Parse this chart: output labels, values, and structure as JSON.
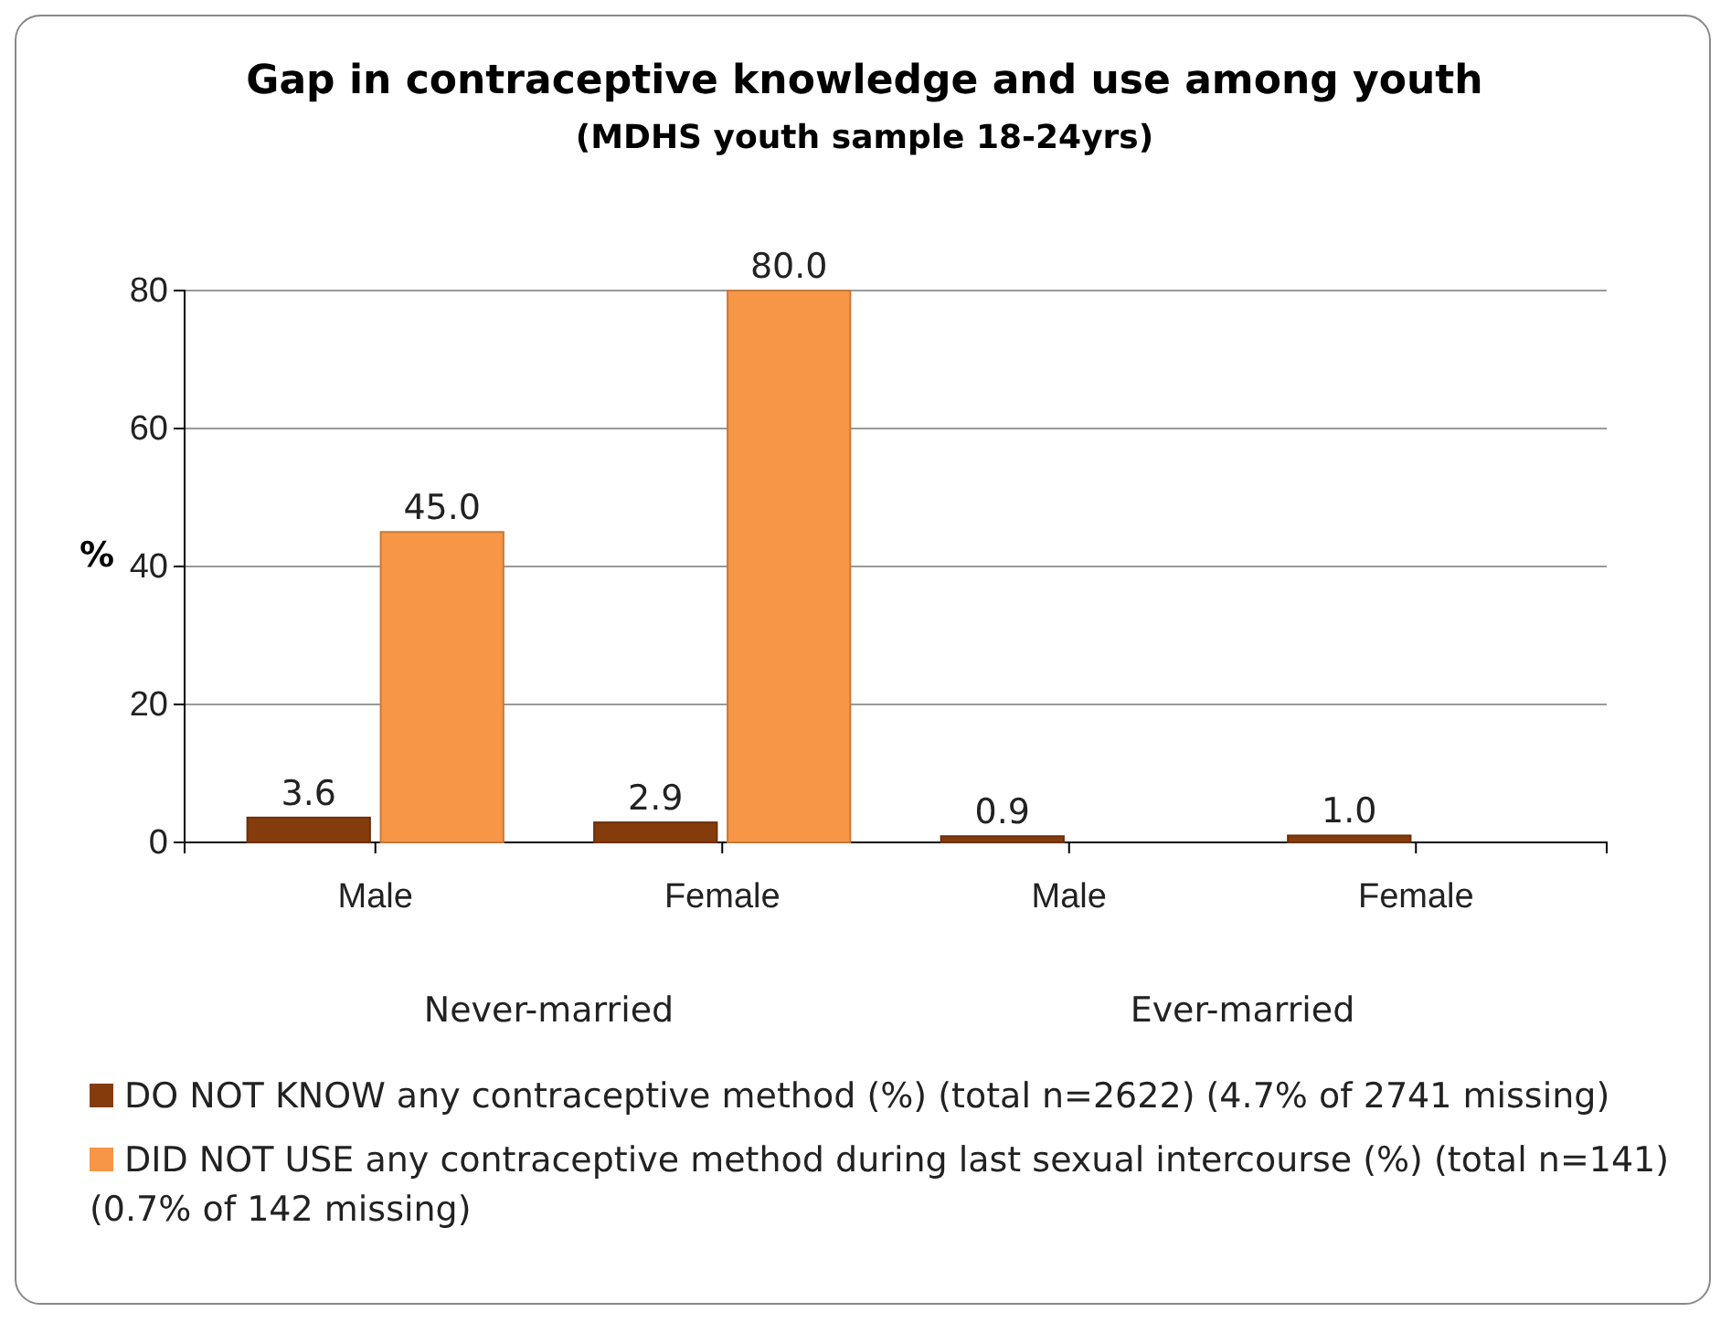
{
  "chart_data": {
    "type": "bar",
    "title": "Gap in contraceptive knowledge and use among youth",
    "subtitle": "(MDHS youth sample 18-24yrs)",
    "ylabel": "%",
    "categories": [
      "Male",
      "Female",
      "Male",
      "Female"
    ],
    "series": [
      {
        "name": "DO NOT KNOW any contraceptive method (%)  (total n=2622) (4.7% of 2741 missing)",
        "color": "#843c0c",
        "values": [
          3.6,
          2.9,
          0.9,
          1.0
        ]
      },
      {
        "name": "DID NOT USE any contraceptive method during last sexual intercourse (%) (total n=141) (0.7% of 142 missing)",
        "color": "#f79646",
        "values": [
          45.0,
          80.0,
          null,
          null
        ]
      }
    ],
    "value_labels": [
      [
        "3.6",
        "2.9",
        "0.9",
        "1.0"
      ],
      [
        "45.0",
        "80.0",
        null,
        null
      ]
    ],
    "annotations": [
      "Never-married",
      "Ever-married"
    ],
    "ylim": [
      0,
      80
    ],
    "yticks": [
      0,
      20,
      40,
      60,
      80
    ],
    "grid": "y",
    "legend": "bottom"
  }
}
